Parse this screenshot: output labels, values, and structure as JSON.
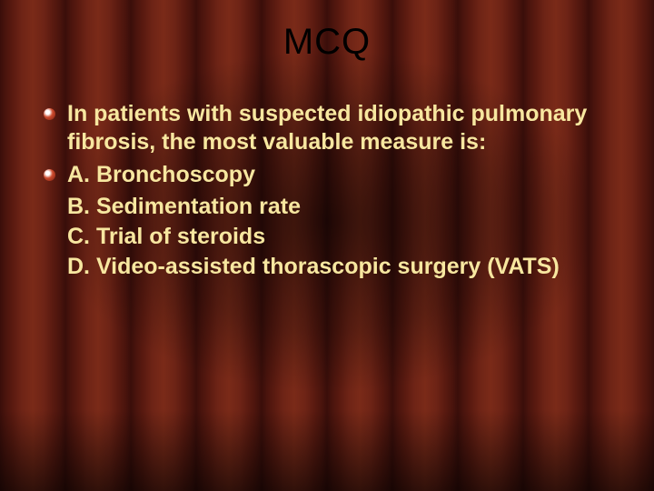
{
  "slide": {
    "title": "MCQ",
    "title_color": "#000000",
    "title_fontsize": 40,
    "body_color": "#f7e7a0",
    "body_fontsize": 25,
    "bullet_color_outer": "#7a1f0e",
    "bullet_color_inner": "#cc4b2e",
    "background_curtain_colors": [
      "#3a0e0a",
      "#5a1a10",
      "#7a2a18"
    ],
    "question": "In patients with suspected idiopathic pulmonary fibrosis, the most valuable measure is:",
    "option_a_prefix": "A. Bronchoscopy",
    "option_b": "B. Sedimentation rate",
    "option_c": "C. Trial of steroids",
    "option_d": "D. Video-assisted thorascopic surgery (VATS)"
  }
}
